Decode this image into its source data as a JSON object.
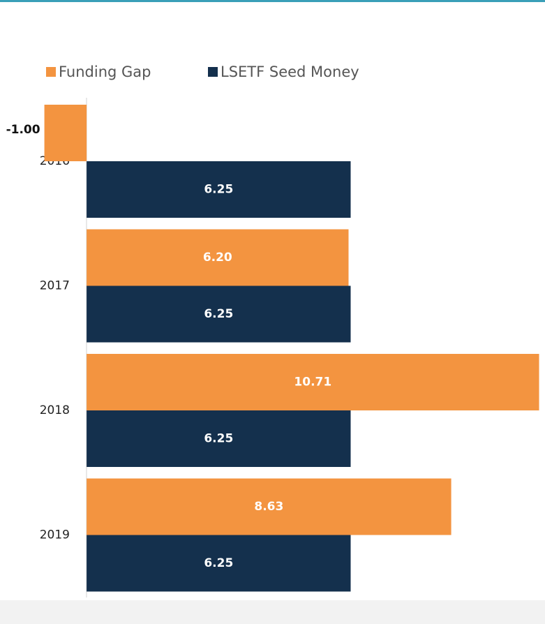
{
  "chart_data": {
    "type": "bar",
    "orientation": "horizontal",
    "categories": [
      "2016",
      "2017",
      "2018",
      "2019"
    ],
    "series": [
      {
        "name": "Funding Gap",
        "color": "#f39440",
        "values": [
          -1.0,
          6.2,
          10.71,
          8.63
        ],
        "value_labels": [
          "-1.00",
          "6.20",
          "10.71",
          "8.63"
        ]
      },
      {
        "name": "LSETF Seed Money",
        "color": "#14304d",
        "values": [
          6.25,
          6.25,
          6.25,
          6.25
        ],
        "value_labels": [
          "6.25",
          "6.25",
          "6.25",
          "6.25"
        ]
      }
    ],
    "xlim": [
      -2.05,
      10.85
    ],
    "legend": "top"
  }
}
